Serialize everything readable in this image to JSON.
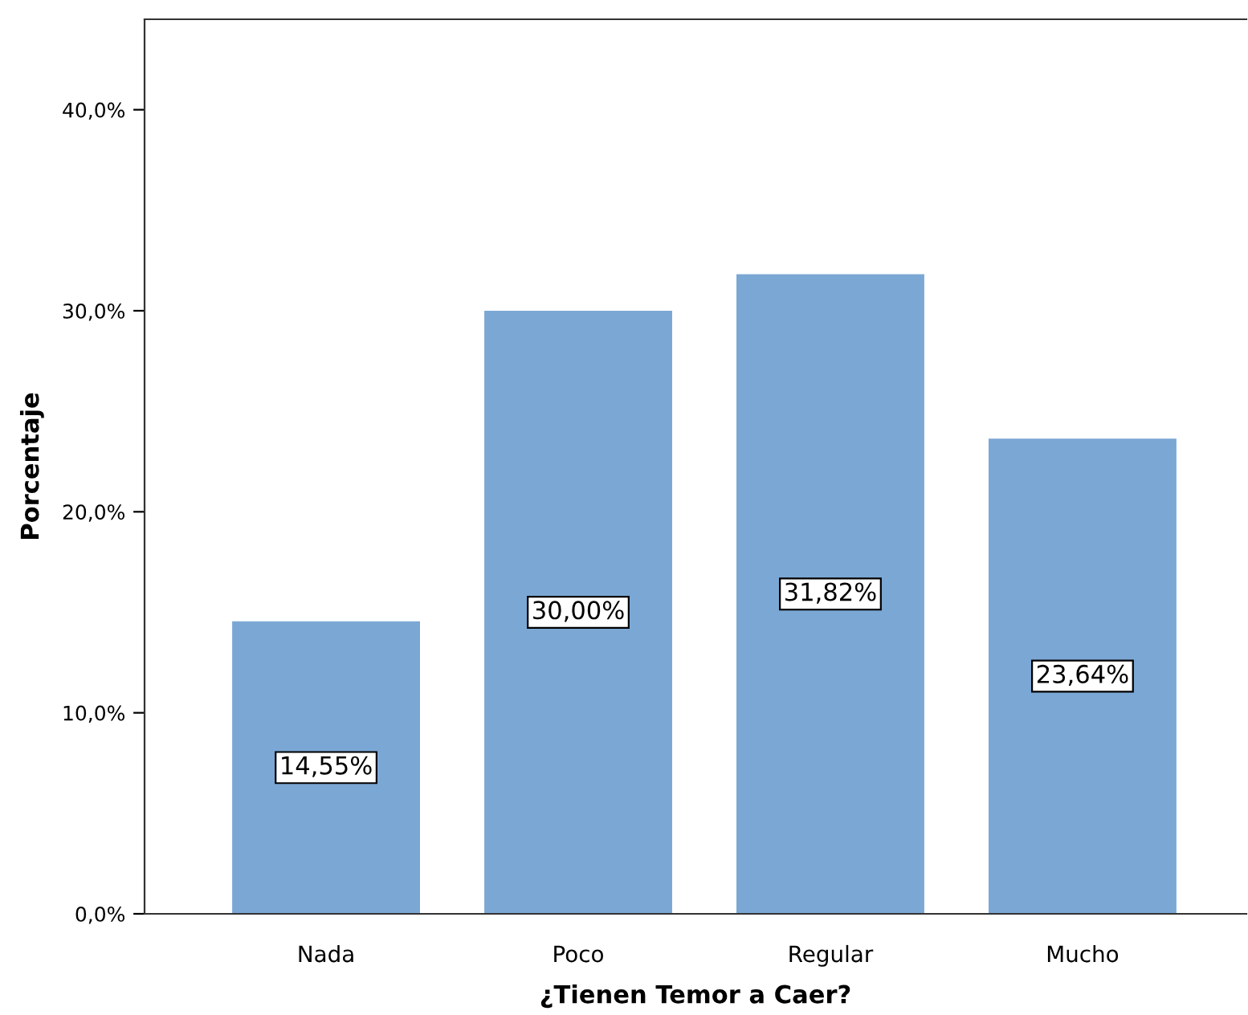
{
  "chart_data": {
    "type": "bar",
    "xlabel": "¿Tienen Temor a Caer?",
    "ylabel": "Porcentaje",
    "categories": [
      "Nada",
      "Poco",
      "Regular",
      "Mucho"
    ],
    "values": [
      14.55,
      30.0,
      31.82,
      23.64
    ],
    "value_labels": [
      "14,55%",
      "30,00%",
      "31,82%",
      "23,64%"
    ],
    "color": "#7ba7d4",
    "ylim": [
      0,
      44.5
    ],
    "yticks": [
      {
        "value": 0,
        "label": "0,0%"
      },
      {
        "value": 10,
        "label": "10,0%"
      },
      {
        "value": 20,
        "label": "20,0%"
      },
      {
        "value": 30,
        "label": "30,0%"
      },
      {
        "value": 40,
        "label": "40,0%"
      }
    ],
    "grid": false
  }
}
